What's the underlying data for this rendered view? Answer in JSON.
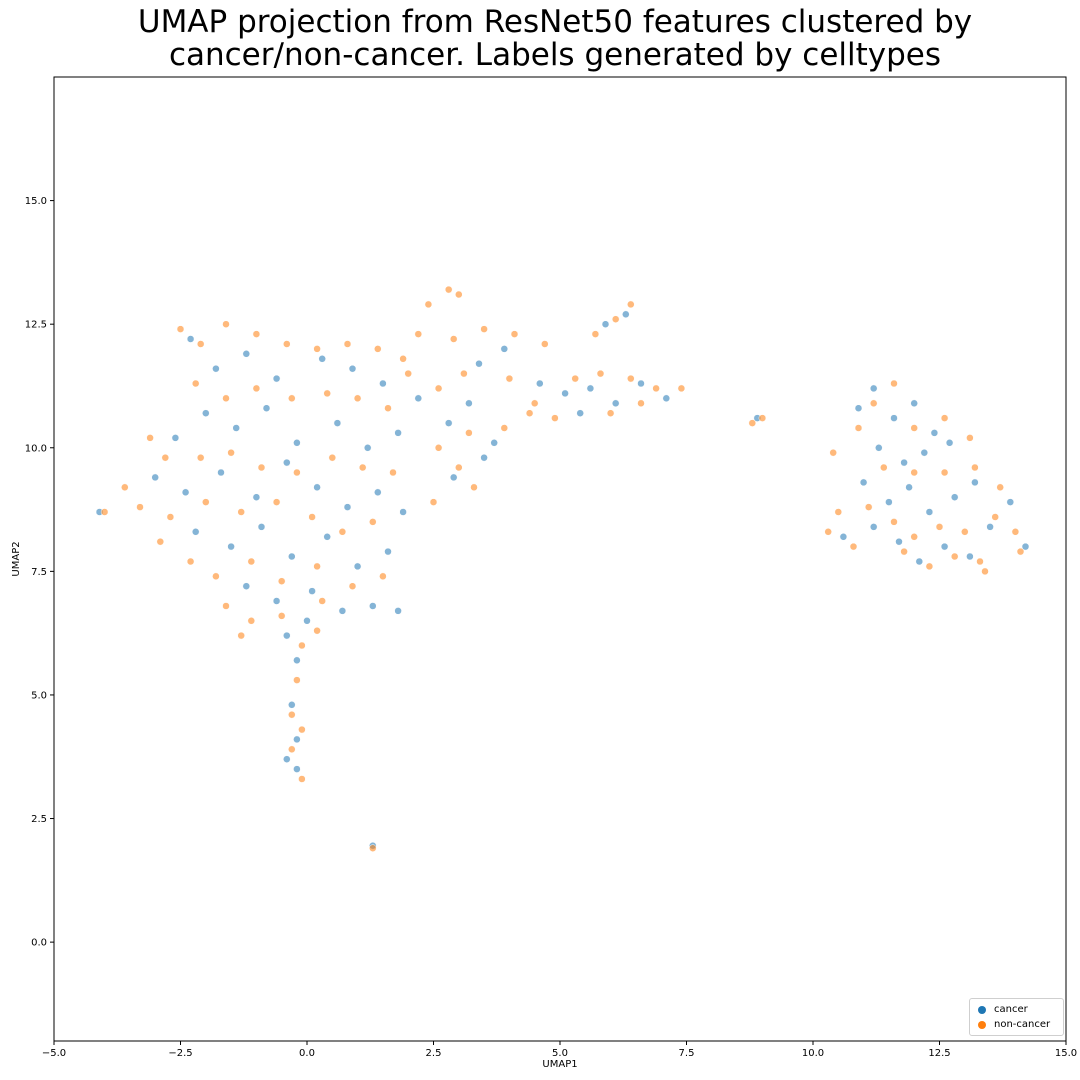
{
  "chart_data": {
    "type": "scatter",
    "title": "UMAP projection from ResNet50 features clustered by\ncancer/non-cancer. Labels generated by celltypes",
    "xlabel": "UMAP1",
    "ylabel": "UMAP2",
    "xlim": [
      -5.0,
      15.0
    ],
    "ylim": [
      -2.0,
      17.5
    ],
    "xticks": [
      -5.0,
      -2.5,
      0.0,
      2.5,
      5.0,
      7.5,
      10.0,
      12.5,
      15.0
    ],
    "yticks": [
      0.0,
      2.5,
      5.0,
      7.5,
      10.0,
      12.5,
      15.0
    ],
    "xtick_labels": [
      "−5.0",
      "−2.5",
      "0.0",
      "2.5",
      "5.0",
      "7.5",
      "10.0",
      "12.5",
      "15.0"
    ],
    "ytick_labels": [
      "0.0",
      "2.5",
      "5.0",
      "7.5",
      "10.0",
      "12.5",
      "15.0"
    ],
    "grid": false,
    "legend_position": "bottom-right",
    "series": [
      {
        "name": "cancer",
        "color": "#1f77b4",
        "points": [
          [
            -2.3,
            12.2
          ],
          [
            -1.8,
            11.6
          ],
          [
            -1.2,
            11.9
          ],
          [
            -0.6,
            11.4
          ],
          [
            0.3,
            11.8
          ],
          [
            0.9,
            11.6
          ],
          [
            1.5,
            11.3
          ],
          [
            -2.6,
            10.2
          ],
          [
            -2.0,
            10.7
          ],
          [
            -1.4,
            10.4
          ],
          [
            -0.8,
            10.8
          ],
          [
            -0.2,
            10.1
          ],
          [
            0.6,
            10.5
          ],
          [
            1.2,
            10.0
          ],
          [
            1.8,
            10.3
          ],
          [
            -3.0,
            9.4
          ],
          [
            -2.4,
            9.1
          ],
          [
            -1.7,
            9.5
          ],
          [
            -1.0,
            9.0
          ],
          [
            -0.4,
            9.7
          ],
          [
            0.2,
            9.2
          ],
          [
            0.8,
            8.8
          ],
          [
            1.4,
            9.1
          ],
          [
            1.9,
            8.7
          ],
          [
            -2.2,
            8.3
          ],
          [
            -1.5,
            8.0
          ],
          [
            -0.9,
            8.4
          ],
          [
            -0.3,
            7.8
          ],
          [
            0.4,
            8.2
          ],
          [
            1.0,
            7.6
          ],
          [
            1.6,
            7.9
          ],
          [
            -1.2,
            7.2
          ],
          [
            -0.6,
            6.9
          ],
          [
            0.1,
            7.1
          ],
          [
            0.7,
            6.7
          ],
          [
            1.3,
            6.8
          ],
          [
            1.8,
            6.7
          ],
          [
            -0.4,
            6.2
          ],
          [
            0.0,
            6.5
          ],
          [
            -0.2,
            5.7
          ],
          [
            -0.3,
            4.8
          ],
          [
            -0.2,
            4.1
          ],
          [
            -0.4,
            3.7
          ],
          [
            -0.2,
            3.5
          ],
          [
            1.3,
            1.95
          ],
          [
            -4.1,
            8.7
          ],
          [
            2.2,
            11.0
          ],
          [
            2.8,
            10.5
          ],
          [
            3.4,
            11.7
          ],
          [
            3.9,
            12.0
          ],
          [
            3.2,
            10.9
          ],
          [
            3.7,
            10.1
          ],
          [
            2.9,
            9.4
          ],
          [
            3.5,
            9.8
          ],
          [
            4.6,
            11.3
          ],
          [
            5.1,
            11.1
          ],
          [
            5.6,
            11.2
          ],
          [
            6.1,
            10.9
          ],
          [
            6.6,
            11.3
          ],
          [
            7.1,
            11.0
          ],
          [
            5.4,
            10.7
          ],
          [
            6.3,
            12.7
          ],
          [
            5.9,
            12.5
          ],
          [
            8.9,
            10.6
          ],
          [
            10.9,
            10.8
          ],
          [
            11.2,
            11.2
          ],
          [
            11.6,
            10.6
          ],
          [
            12.0,
            10.9
          ],
          [
            12.4,
            10.3
          ],
          [
            11.3,
            10.0
          ],
          [
            11.8,
            9.7
          ],
          [
            12.2,
            9.9
          ],
          [
            12.7,
            10.1
          ],
          [
            11.0,
            9.3
          ],
          [
            11.5,
            8.9
          ],
          [
            11.9,
            9.2
          ],
          [
            12.3,
            8.7
          ],
          [
            12.8,
            9.0
          ],
          [
            13.2,
            9.3
          ],
          [
            11.2,
            8.4
          ],
          [
            11.7,
            8.1
          ],
          [
            12.1,
            7.7
          ],
          [
            12.6,
            8.0
          ],
          [
            13.1,
            7.8
          ],
          [
            13.5,
            8.4
          ],
          [
            13.9,
            8.9
          ],
          [
            14.2,
            8.0
          ],
          [
            10.6,
            8.2
          ]
        ]
      },
      {
        "name": "non-cancer",
        "color": "#ff7f0e",
        "points": [
          [
            -2.5,
            12.4
          ],
          [
            -2.1,
            12.1
          ],
          [
            -1.6,
            12.5
          ],
          [
            -1.0,
            12.3
          ],
          [
            -0.4,
            12.1
          ],
          [
            0.2,
            12.0
          ],
          [
            0.8,
            12.1
          ],
          [
            1.4,
            12.0
          ],
          [
            1.9,
            11.8
          ],
          [
            -2.2,
            11.3
          ],
          [
            -1.6,
            11.0
          ],
          [
            -1.0,
            11.2
          ],
          [
            -0.3,
            11.0
          ],
          [
            0.4,
            11.1
          ],
          [
            1.0,
            11.0
          ],
          [
            1.6,
            10.8
          ],
          [
            -3.1,
            10.2
          ],
          [
            -2.8,
            9.8
          ],
          [
            -2.1,
            9.8
          ],
          [
            -1.5,
            9.9
          ],
          [
            -0.9,
            9.6
          ],
          [
            -0.2,
            9.5
          ],
          [
            0.5,
            9.8
          ],
          [
            1.1,
            9.6
          ],
          [
            1.7,
            9.5
          ],
          [
            -3.6,
            9.2
          ],
          [
            -3.3,
            8.8
          ],
          [
            -2.7,
            8.6
          ],
          [
            -2.0,
            8.9
          ],
          [
            -1.3,
            8.7
          ],
          [
            -0.6,
            8.9
          ],
          [
            0.1,
            8.6
          ],
          [
            0.7,
            8.3
          ],
          [
            1.3,
            8.5
          ],
          [
            -2.9,
            8.1
          ],
          [
            -2.3,
            7.7
          ],
          [
            -1.8,
            7.4
          ],
          [
            -1.1,
            7.7
          ],
          [
            -0.5,
            7.3
          ],
          [
            0.2,
            7.6
          ],
          [
            0.9,
            7.2
          ],
          [
            1.5,
            7.4
          ],
          [
            -1.6,
            6.8
          ],
          [
            -1.1,
            6.5
          ],
          [
            -0.5,
            6.6
          ],
          [
            0.3,
            6.9
          ],
          [
            -1.3,
            6.2
          ],
          [
            -0.1,
            6.0
          ],
          [
            0.2,
            6.3
          ],
          [
            -0.2,
            5.3
          ],
          [
            -0.3,
            4.6
          ],
          [
            -0.1,
            4.3
          ],
          [
            -0.3,
            3.9
          ],
          [
            -0.1,
            3.3
          ],
          [
            1.3,
            1.9
          ],
          [
            -4.0,
            8.7
          ],
          [
            2.0,
            11.5
          ],
          [
            2.6,
            11.2
          ],
          [
            2.4,
            12.9
          ],
          [
            2.8,
            13.2
          ],
          [
            3.0,
            13.1
          ],
          [
            2.2,
            12.3
          ],
          [
            2.9,
            12.2
          ],
          [
            3.5,
            12.4
          ],
          [
            4.1,
            12.3
          ],
          [
            4.7,
            12.1
          ],
          [
            3.1,
            11.5
          ],
          [
            4.0,
            11.4
          ],
          [
            4.5,
            10.9
          ],
          [
            3.2,
            10.3
          ],
          [
            2.6,
            10.0
          ],
          [
            3.0,
            9.6
          ],
          [
            2.5,
            8.9
          ],
          [
            3.3,
            9.2
          ],
          [
            3.9,
            10.4
          ],
          [
            4.9,
            10.6
          ],
          [
            5.3,
            11.4
          ],
          [
            5.8,
            11.5
          ],
          [
            6.4,
            11.4
          ],
          [
            6.9,
            11.2
          ],
          [
            7.4,
            11.2
          ],
          [
            6.0,
            10.7
          ],
          [
            6.6,
            10.9
          ],
          [
            4.4,
            10.7
          ],
          [
            5.7,
            12.3
          ],
          [
            6.1,
            12.6
          ],
          [
            6.4,
            12.9
          ],
          [
            8.8,
            10.5
          ],
          [
            9.0,
            10.6
          ],
          [
            10.3,
            8.3
          ],
          [
            10.5,
            8.7
          ],
          [
            10.8,
            8.0
          ],
          [
            10.4,
            9.9
          ],
          [
            10.9,
            10.4
          ],
          [
            11.2,
            10.9
          ],
          [
            11.6,
            11.3
          ],
          [
            12.0,
            10.4
          ],
          [
            12.6,
            10.6
          ],
          [
            13.1,
            10.2
          ],
          [
            11.4,
            9.6
          ],
          [
            12.0,
            9.5
          ],
          [
            12.6,
            9.5
          ],
          [
            13.2,
            9.6
          ],
          [
            13.7,
            9.2
          ],
          [
            11.1,
            8.8
          ],
          [
            11.6,
            8.5
          ],
          [
            12.0,
            8.2
          ],
          [
            12.5,
            8.4
          ],
          [
            13.0,
            8.3
          ],
          [
            13.6,
            8.6
          ],
          [
            14.0,
            8.3
          ],
          [
            11.8,
            7.9
          ],
          [
            12.3,
            7.6
          ],
          [
            12.8,
            7.8
          ],
          [
            13.4,
            7.5
          ],
          [
            13.3,
            7.7
          ],
          [
            14.1,
            7.9
          ]
        ]
      }
    ]
  }
}
